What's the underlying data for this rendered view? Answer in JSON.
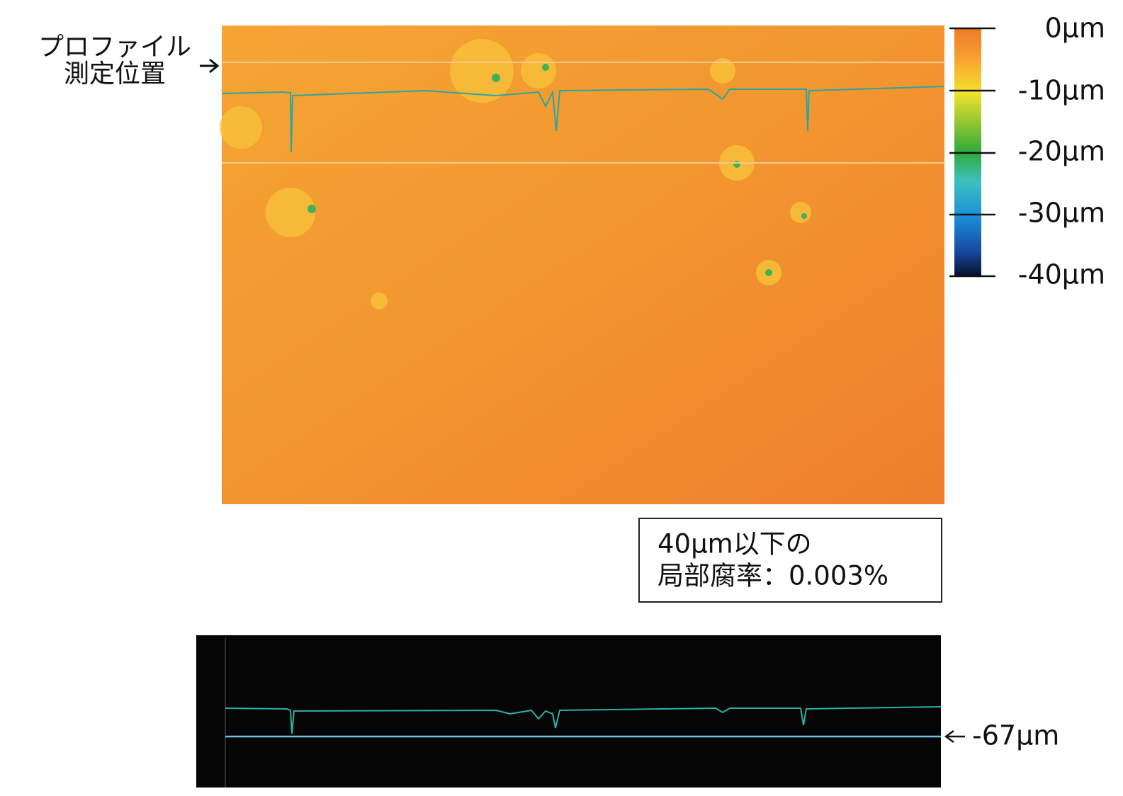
{
  "left_label": {
    "line1": "プロファイル",
    "line2": "測定位置"
  },
  "colorbar": {
    "labels": [
      "0μm",
      "-10μm",
      "-20μm",
      "-30μm",
      "-40μm"
    ]
  },
  "note_box": {
    "line1": "40μm以下の",
    "line2": "局部腐率：0.003%"
  },
  "profile": {
    "marker_label": "-67μm"
  }
}
